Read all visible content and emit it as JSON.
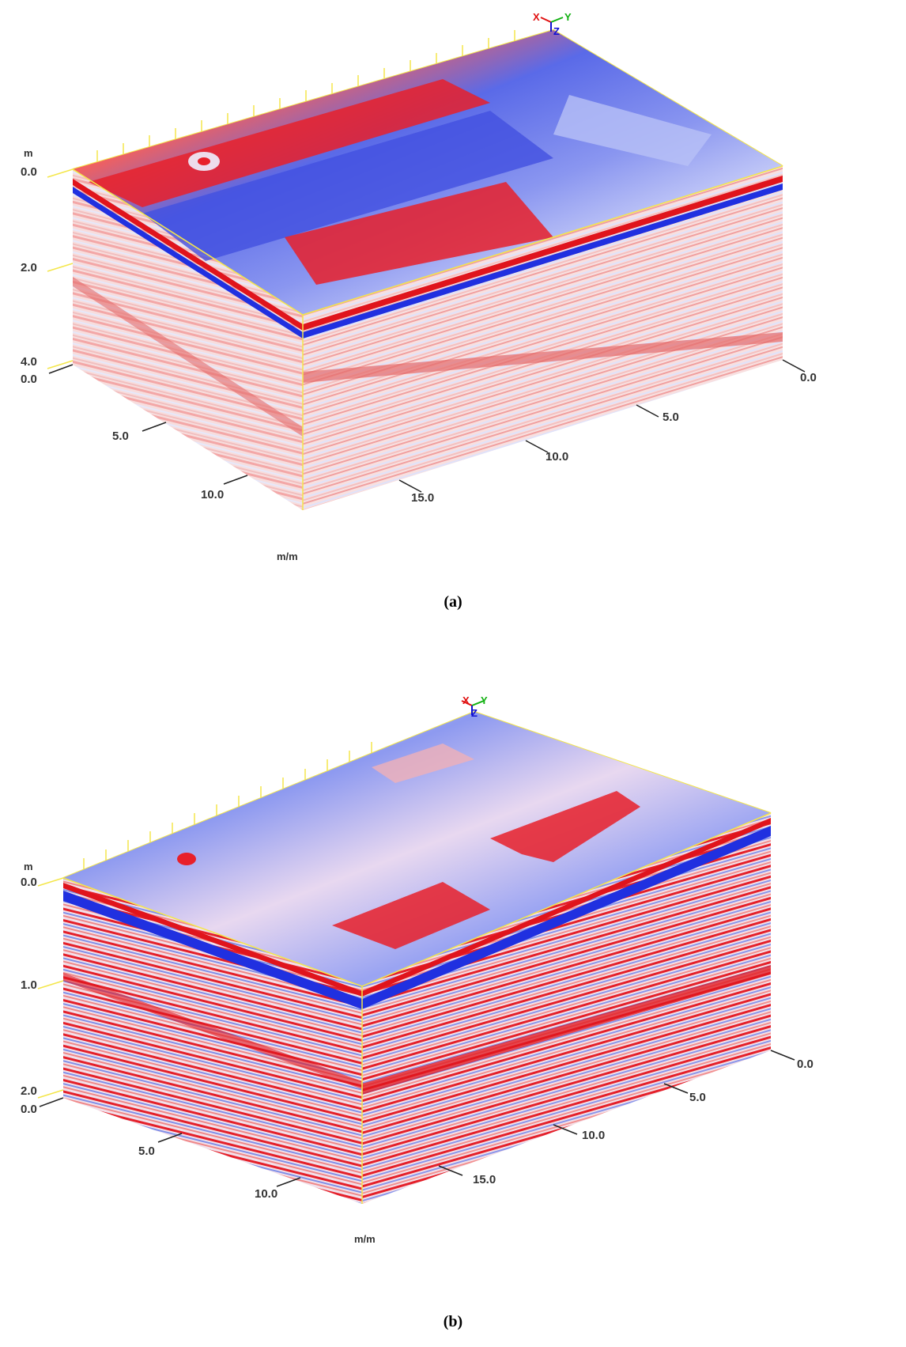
{
  "figures": [
    {
      "caption": "(a)",
      "depth_unit": "m",
      "depth_ticks": [
        "0.0",
        "2.0",
        "4.0"
      ],
      "front_ticks": [
        "0.0",
        "5.0",
        "10.0"
      ],
      "right_ticks": [
        "0.0",
        "5.0",
        "10.0",
        "15.0"
      ],
      "bottom_label": "m/m",
      "axis_triad": {
        "x": "X",
        "y": "Y",
        "z": "Z"
      }
    },
    {
      "caption": "(b)",
      "depth_unit": "m",
      "depth_ticks": [
        "0.0",
        "1.0",
        "2.0"
      ],
      "front_ticks": [
        "0.0",
        "5.0",
        "10.0"
      ],
      "right_ticks": [
        "0.0",
        "5.0",
        "10.0",
        "15.0"
      ],
      "bottom_label": "m/m",
      "axis_triad": {
        "x": "X",
        "y": "Y",
        "z": "Z"
      }
    }
  ],
  "colors": {
    "frame": "#f4e64a",
    "axis_x": "#e01010",
    "axis_y": "#10b010",
    "axis_z": "#1010d0",
    "amp_positive": "#e0141c",
    "amp_negative": "#2030e0",
    "amp_neutral": "#ffffff"
  }
}
